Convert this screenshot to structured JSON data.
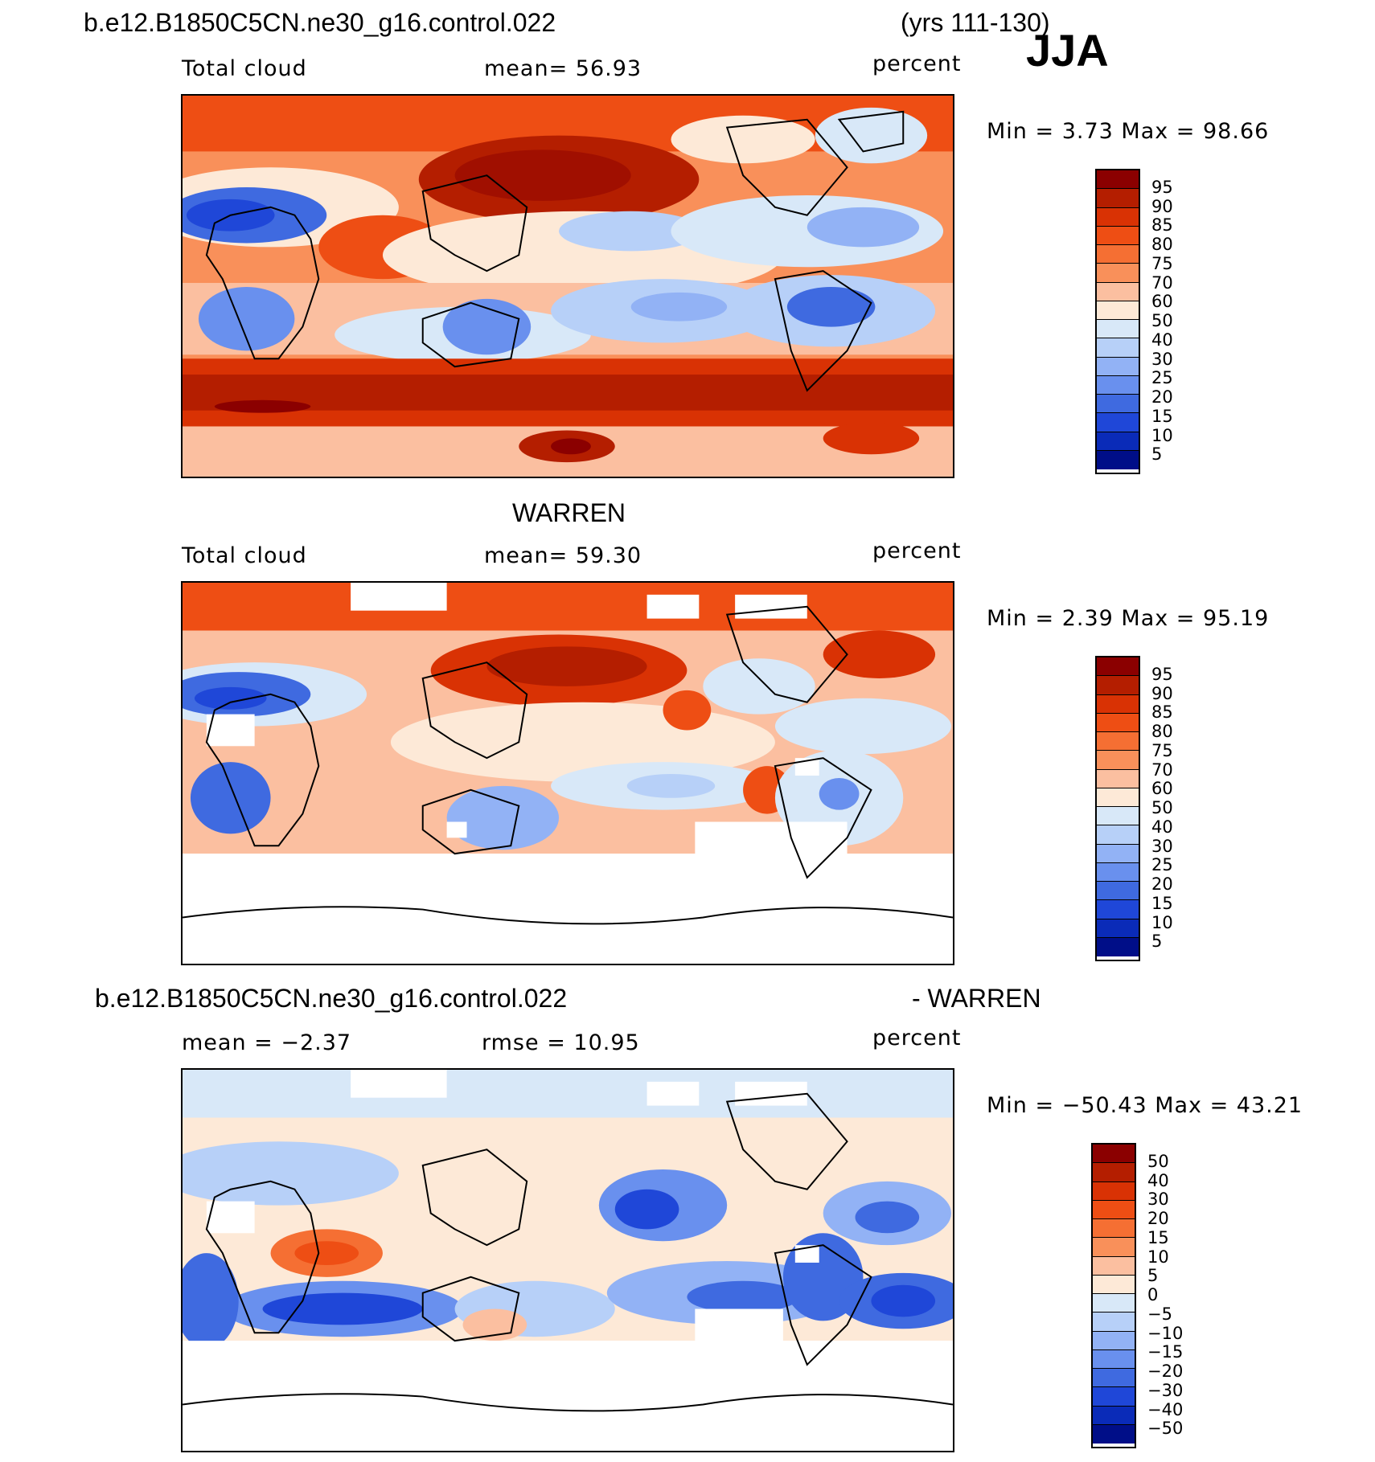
{
  "header": {
    "run_name": "b.e12.B1850C5CN.ne30_g16.control.022",
    "years": "(yrs 111-130)",
    "season": "JJA"
  },
  "panels": [
    {
      "title": "",
      "left_label": "Total cloud",
      "mean_label": "mean=   56.93",
      "units": "percent",
      "minmax": "Min =    3.73  Max =   98.66"
    },
    {
      "title": "WARREN",
      "left_label": "Total cloud",
      "mean_label": "mean=   59.30",
      "units": "percent",
      "minmax": "Min =    2.39  Max =   95.19"
    },
    {
      "title_left": "b.e12.B1850C5CN.ne30_g16.control.022",
      "title_right": "- WARREN",
      "left_label": "mean =   −2.37",
      "mean_label": "rmse =    10.95",
      "units": "percent",
      "minmax": "Min = −50.43  Max =   43.21"
    }
  ],
  "colorbar_abs": {
    "labels": [
      "95",
      "90",
      "85",
      "80",
      "75",
      "70",
      "60",
      "50",
      "40",
      "30",
      "25",
      "20",
      "15",
      "10",
      "5"
    ],
    "colors": [
      "#8b0000",
      "#b41e00",
      "#d93204",
      "#ee4e14",
      "#f56f33",
      "#f9905a",
      "#fbbfa0",
      "#fde9d7",
      "#d8e8f8",
      "#b7d0f8",
      "#92b2f5",
      "#6990ee",
      "#3f6ae0",
      "#1f47d8",
      "#0a2bb8",
      "#000e88"
    ]
  },
  "colorbar_diff": {
    "labels": [
      "50",
      "40",
      "30",
      "20",
      "15",
      "10",
      "5",
      "0",
      "−5",
      "−10",
      "−15",
      "−20",
      "−30",
      "−40",
      "−50"
    ],
    "colors": [
      "#8b0000",
      "#b41e00",
      "#d93204",
      "#ee4e14",
      "#f56f33",
      "#f9905a",
      "#fbbfa0",
      "#fde9d7",
      "#d8e8f8",
      "#b7d0f8",
      "#92b2f5",
      "#6990ee",
      "#3f6ae0",
      "#1f47d8",
      "#0a2bb8",
      "#000e88"
    ]
  }
}
